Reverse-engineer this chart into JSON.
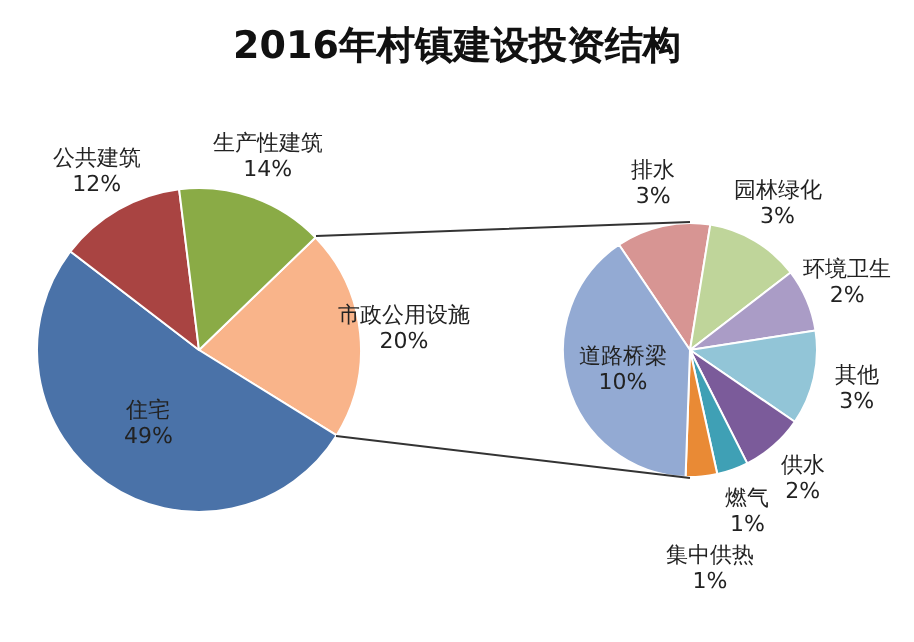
{
  "chart_data": [
    {
      "type": "pie",
      "title": "2016年村镇建设投资结构",
      "categories": [
        "市政公用设施",
        "住宅",
        "公共建筑",
        "生产性建筑"
      ],
      "values": [
        20,
        49,
        12,
        14
      ],
      "value_labels": [
        "20%",
        "49%",
        "12%",
        "14%"
      ],
      "colors": [
        "#f9b48a",
        "#4a72a8",
        "#a94442",
        "#8aab46"
      ]
    },
    {
      "type": "pie",
      "categories": [
        "排水",
        "园林绿化",
        "环境卫生",
        "其他",
        "供水",
        "燃气",
        "集中供热",
        "道路桥梁"
      ],
      "values": [
        3,
        3,
        2,
        3,
        2,
        1,
        1,
        10
      ],
      "value_labels": [
        "3%",
        "3%",
        "2%",
        "3%",
        "2%",
        "1%",
        "1%",
        "10%"
      ],
      "colors": [
        "#d79593",
        "#bfd59a",
        "#aa9cc6",
        "#92c5d7",
        "#7b5b9a",
        "#3fa0b5",
        "#e98a35",
        "#93aad3"
      ]
    }
  ]
}
